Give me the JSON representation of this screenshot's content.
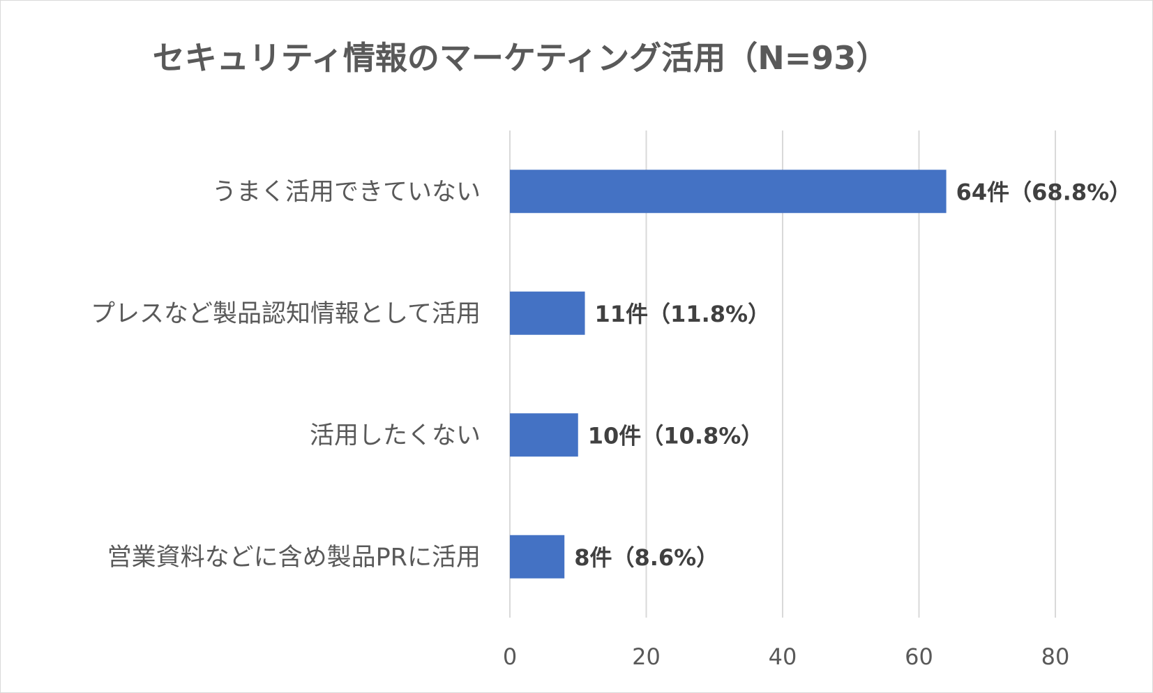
{
  "chart_data": {
    "type": "bar",
    "orientation": "horizontal",
    "title": "セキュリティ情報のマーケティング活用（N=93）",
    "categories": [
      "うまく活用できていない",
      "プレスなど製品認知情報として活用",
      "活用したくない",
      "営業資料などに含め製品PRに活用"
    ],
    "values": [
      64,
      11,
      10,
      8
    ],
    "data_labels": [
      "64件（68.8%）",
      "11件（11.8%）",
      "10件（10.8%）",
      "8件（8.6%）"
    ],
    "xlim": [
      0,
      80
    ],
    "xticks": [
      0,
      20,
      40,
      60,
      80
    ],
    "xtick_labels": [
      "0",
      "20",
      "40",
      "60",
      "80"
    ],
    "xlabel": "",
    "ylabel": "",
    "grid": true,
    "legend": "none",
    "bar_color": "#4472c4",
    "grid_color": "#d9d9d9",
    "text_color": "#595959"
  }
}
